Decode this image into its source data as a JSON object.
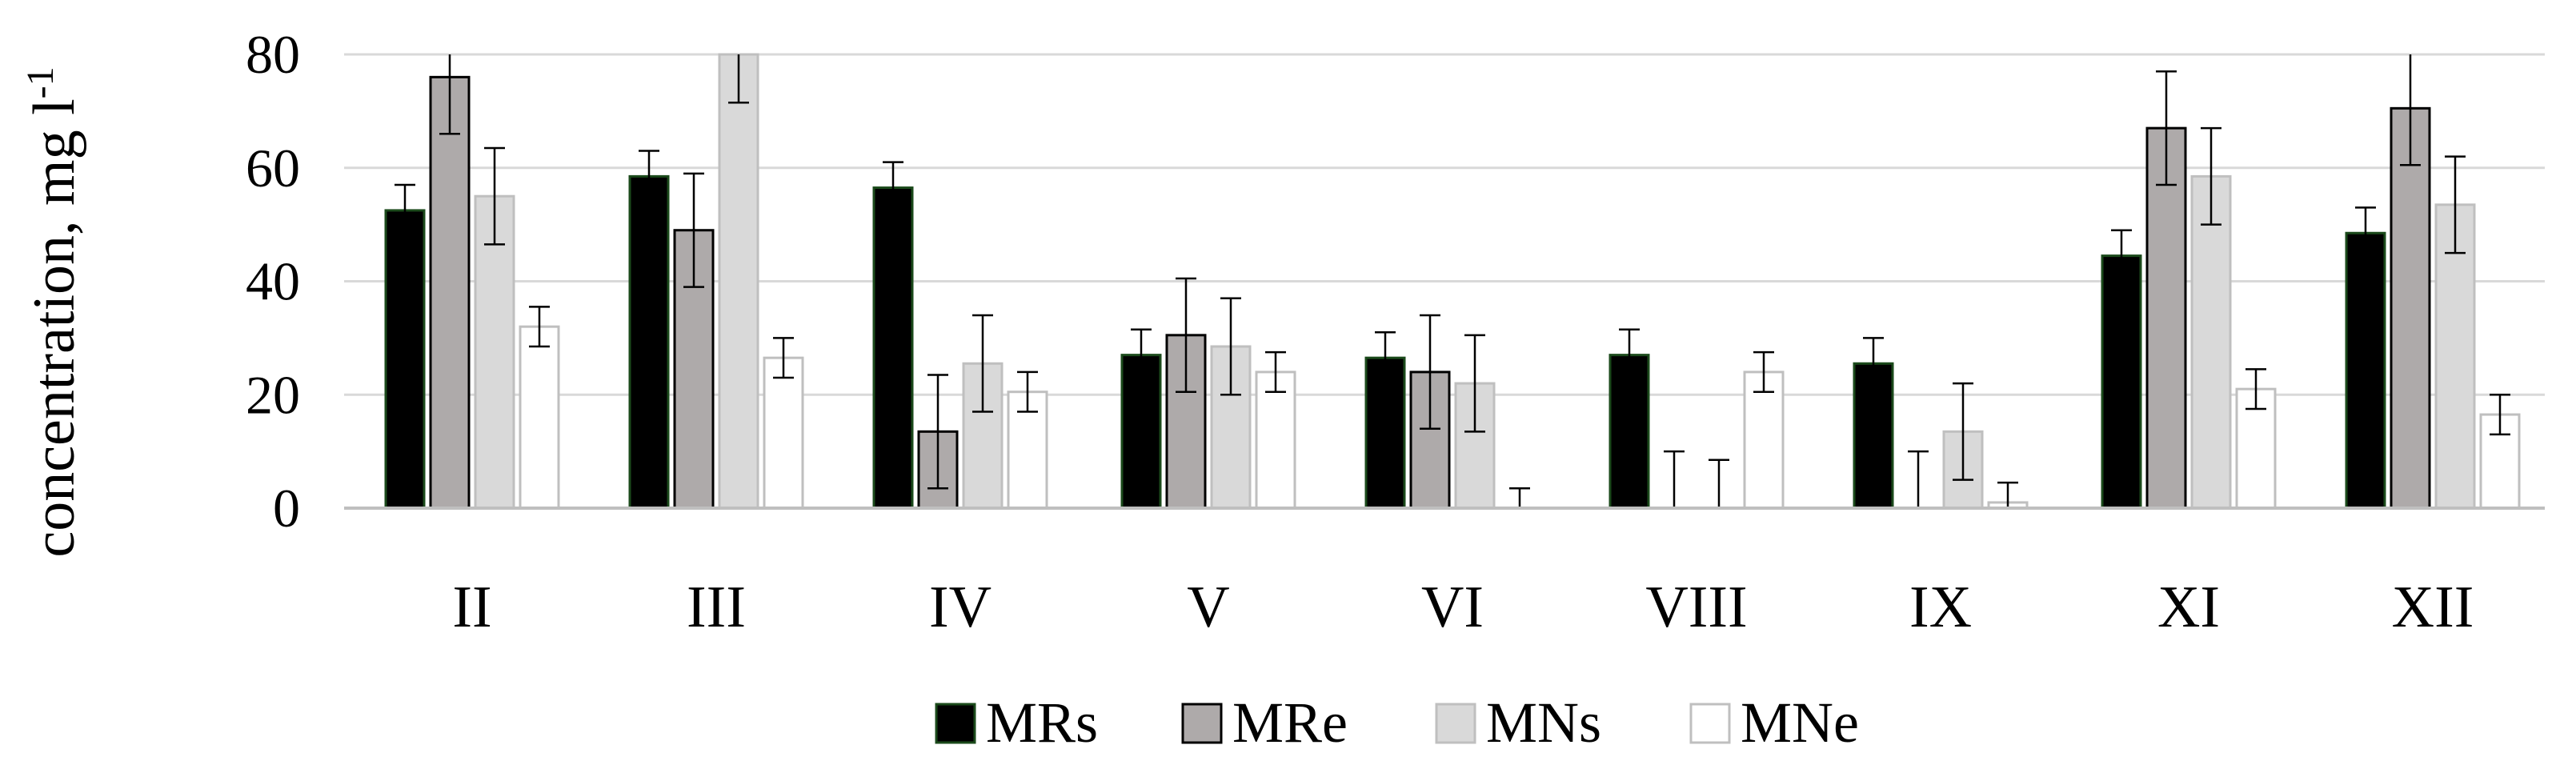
{
  "chart_data": {
    "type": "bar",
    "title": "",
    "xlabel": "",
    "ylabel": "concentration, mg l",
    "ylabel_superscript": "-1",
    "ylim": [
      0,
      80
    ],
    "yticks": [
      0,
      20,
      40,
      60,
      80
    ],
    "grid": true,
    "legend_position": "bottom",
    "categories": [
      "II",
      "III",
      "IV",
      "V",
      "VI",
      "VIII",
      "IX",
      "XI",
      "XII"
    ],
    "series": [
      {
        "name": "MRs",
        "color": "#000000",
        "stroke": "#1b4a1b",
        "values": [
          52.5,
          58.5,
          56.5,
          27.0,
          26.5,
          27.0,
          25.5,
          44.5,
          48.5
        ],
        "errors": [
          4.5,
          4.5,
          4.5,
          4.5,
          4.5,
          4.5,
          4.5,
          4.5,
          4.5
        ]
      },
      {
        "name": "MRe",
        "color": "#aeaaaa",
        "stroke": "#000000",
        "values": [
          76.0,
          49.0,
          13.5,
          30.5,
          24.0,
          0,
          0,
          67.0,
          70.5
        ],
        "errors": [
          10.0,
          10.0,
          10.0,
          10.0,
          10.0,
          10.0,
          10.0,
          10.0,
          10.0
        ]
      },
      {
        "name": "MNs",
        "color": "#d9d9d9",
        "stroke": "#bfbfbf",
        "values": [
          55.0,
          80.0,
          25.5,
          28.5,
          22.0,
          0,
          13.5,
          58.5,
          53.5
        ],
        "errors": [
          8.5,
          8.5,
          8.5,
          8.5,
          8.5,
          8.5,
          8.5,
          8.5,
          8.5
        ]
      },
      {
        "name": "MNe",
        "color": "#ffffff",
        "stroke": "#bfbfbf",
        "values": [
          32.0,
          26.5,
          20.5,
          24.0,
          0,
          24.0,
          1.0,
          21.0,
          16.5
        ],
        "errors": [
          3.5,
          3.5,
          3.5,
          3.5,
          3.5,
          3.5,
          3.5,
          3.5,
          3.5
        ]
      }
    ]
  }
}
